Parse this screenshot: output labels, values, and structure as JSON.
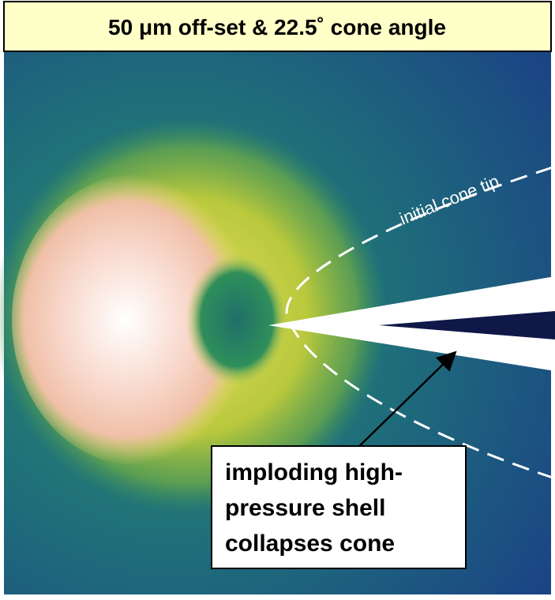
{
  "header": {
    "title": "50 μm off-set & 22.5˚ cone angle"
  },
  "annotations": {
    "cone_tip": "initial cone tip",
    "callout": [
      "imploding high-",
      "pressure shell",
      "collapses cone"
    ]
  }
}
